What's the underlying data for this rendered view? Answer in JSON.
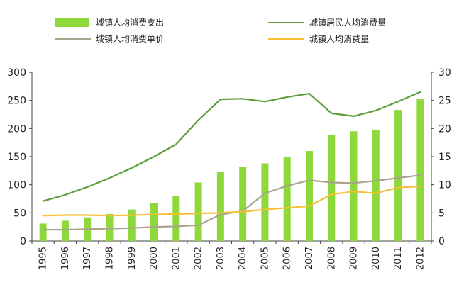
{
  "chart_data": {
    "type": "bar+line",
    "categories": [
      "1995",
      "1996",
      "1997",
      "1998",
      "1999",
      "2000",
      "2001",
      "2002",
      "2003",
      "2004",
      "2005",
      "2006",
      "2007",
      "2008",
      "2009",
      "2010",
      "2011",
      "2012"
    ],
    "left_axis": {
      "ylim": [
        0,
        300
      ],
      "ticks": [
        0,
        50,
        100,
        150,
        200,
        250,
        300
      ]
    },
    "right_axis": {
      "ylim": [
        0,
        30
      ],
      "ticks": [
        0,
        5,
        10,
        15,
        20,
        25,
        30
      ]
    },
    "grid": false,
    "legend_position": "top",
    "series": [
      {
        "name": "城镇人均消费支出",
        "type": "bar",
        "axis": "left",
        "color": "#8ED83C",
        "values": [
          31,
          36,
          42,
          48,
          56,
          67,
          80,
          104,
          123,
          132,
          138,
          150,
          160,
          188,
          195,
          198,
          233,
          252
        ]
      },
      {
        "name": "城镇居民人均消费量",
        "type": "line",
        "axis": "left",
        "color": "#5E9E3A",
        "values": [
          71,
          82,
          96,
          112,
          130,
          150,
          172,
          215,
          252,
          253,
          248,
          256,
          262,
          227,
          222,
          232,
          248,
          265
        ]
      },
      {
        "name": "城镇人均消费单价",
        "type": "line",
        "axis": "right",
        "color": "#A9A48E",
        "values": [
          2.0,
          2.0,
          2.1,
          2.2,
          2.3,
          2.5,
          2.6,
          2.8,
          4.7,
          5.3,
          8.5,
          9.8,
          10.8,
          10.4,
          10.3,
          10.7,
          11.2,
          11.7
        ]
      },
      {
        "name": "城镇人均消费量",
        "type": "line",
        "axis": "right",
        "color": "#F5C033",
        "values": [
          4.5,
          4.6,
          4.6,
          4.5,
          4.6,
          4.7,
          4.8,
          4.9,
          5.0,
          5.2,
          5.6,
          5.9,
          6.2,
          8.3,
          8.8,
          8.5,
          9.5,
          9.7
        ]
      }
    ]
  }
}
